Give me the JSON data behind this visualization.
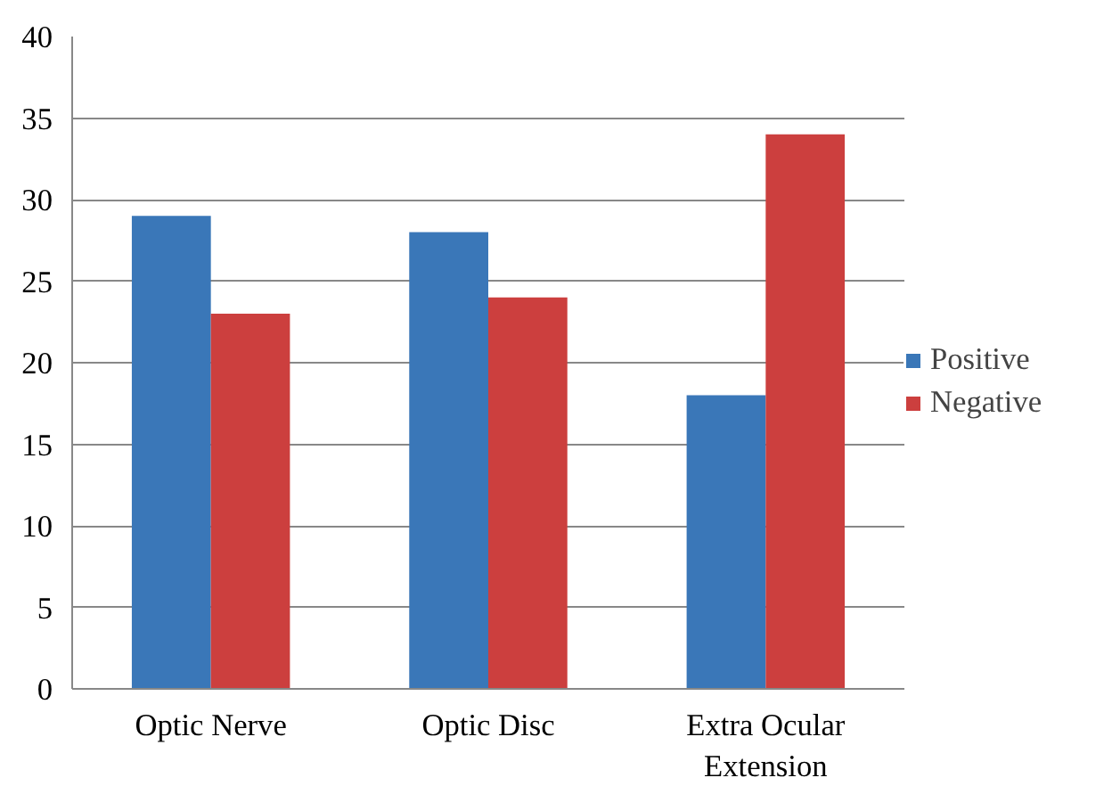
{
  "chart_data": {
    "type": "bar",
    "categories": [
      "Optic Nerve",
      "Optic Disc",
      "Extra Ocular Extension"
    ],
    "series": [
      {
        "name": "Positive",
        "color": "#3a77b8",
        "values": [
          29,
          28,
          18
        ]
      },
      {
        "name": "Negative",
        "color": "#cc3f3e",
        "values": [
          23,
          24,
          34
        ]
      }
    ],
    "ylim": [
      0,
      40
    ],
    "yticks": [
      0,
      5,
      10,
      15,
      20,
      25,
      30,
      35,
      40
    ],
    "grid": "y",
    "legend": "right"
  }
}
